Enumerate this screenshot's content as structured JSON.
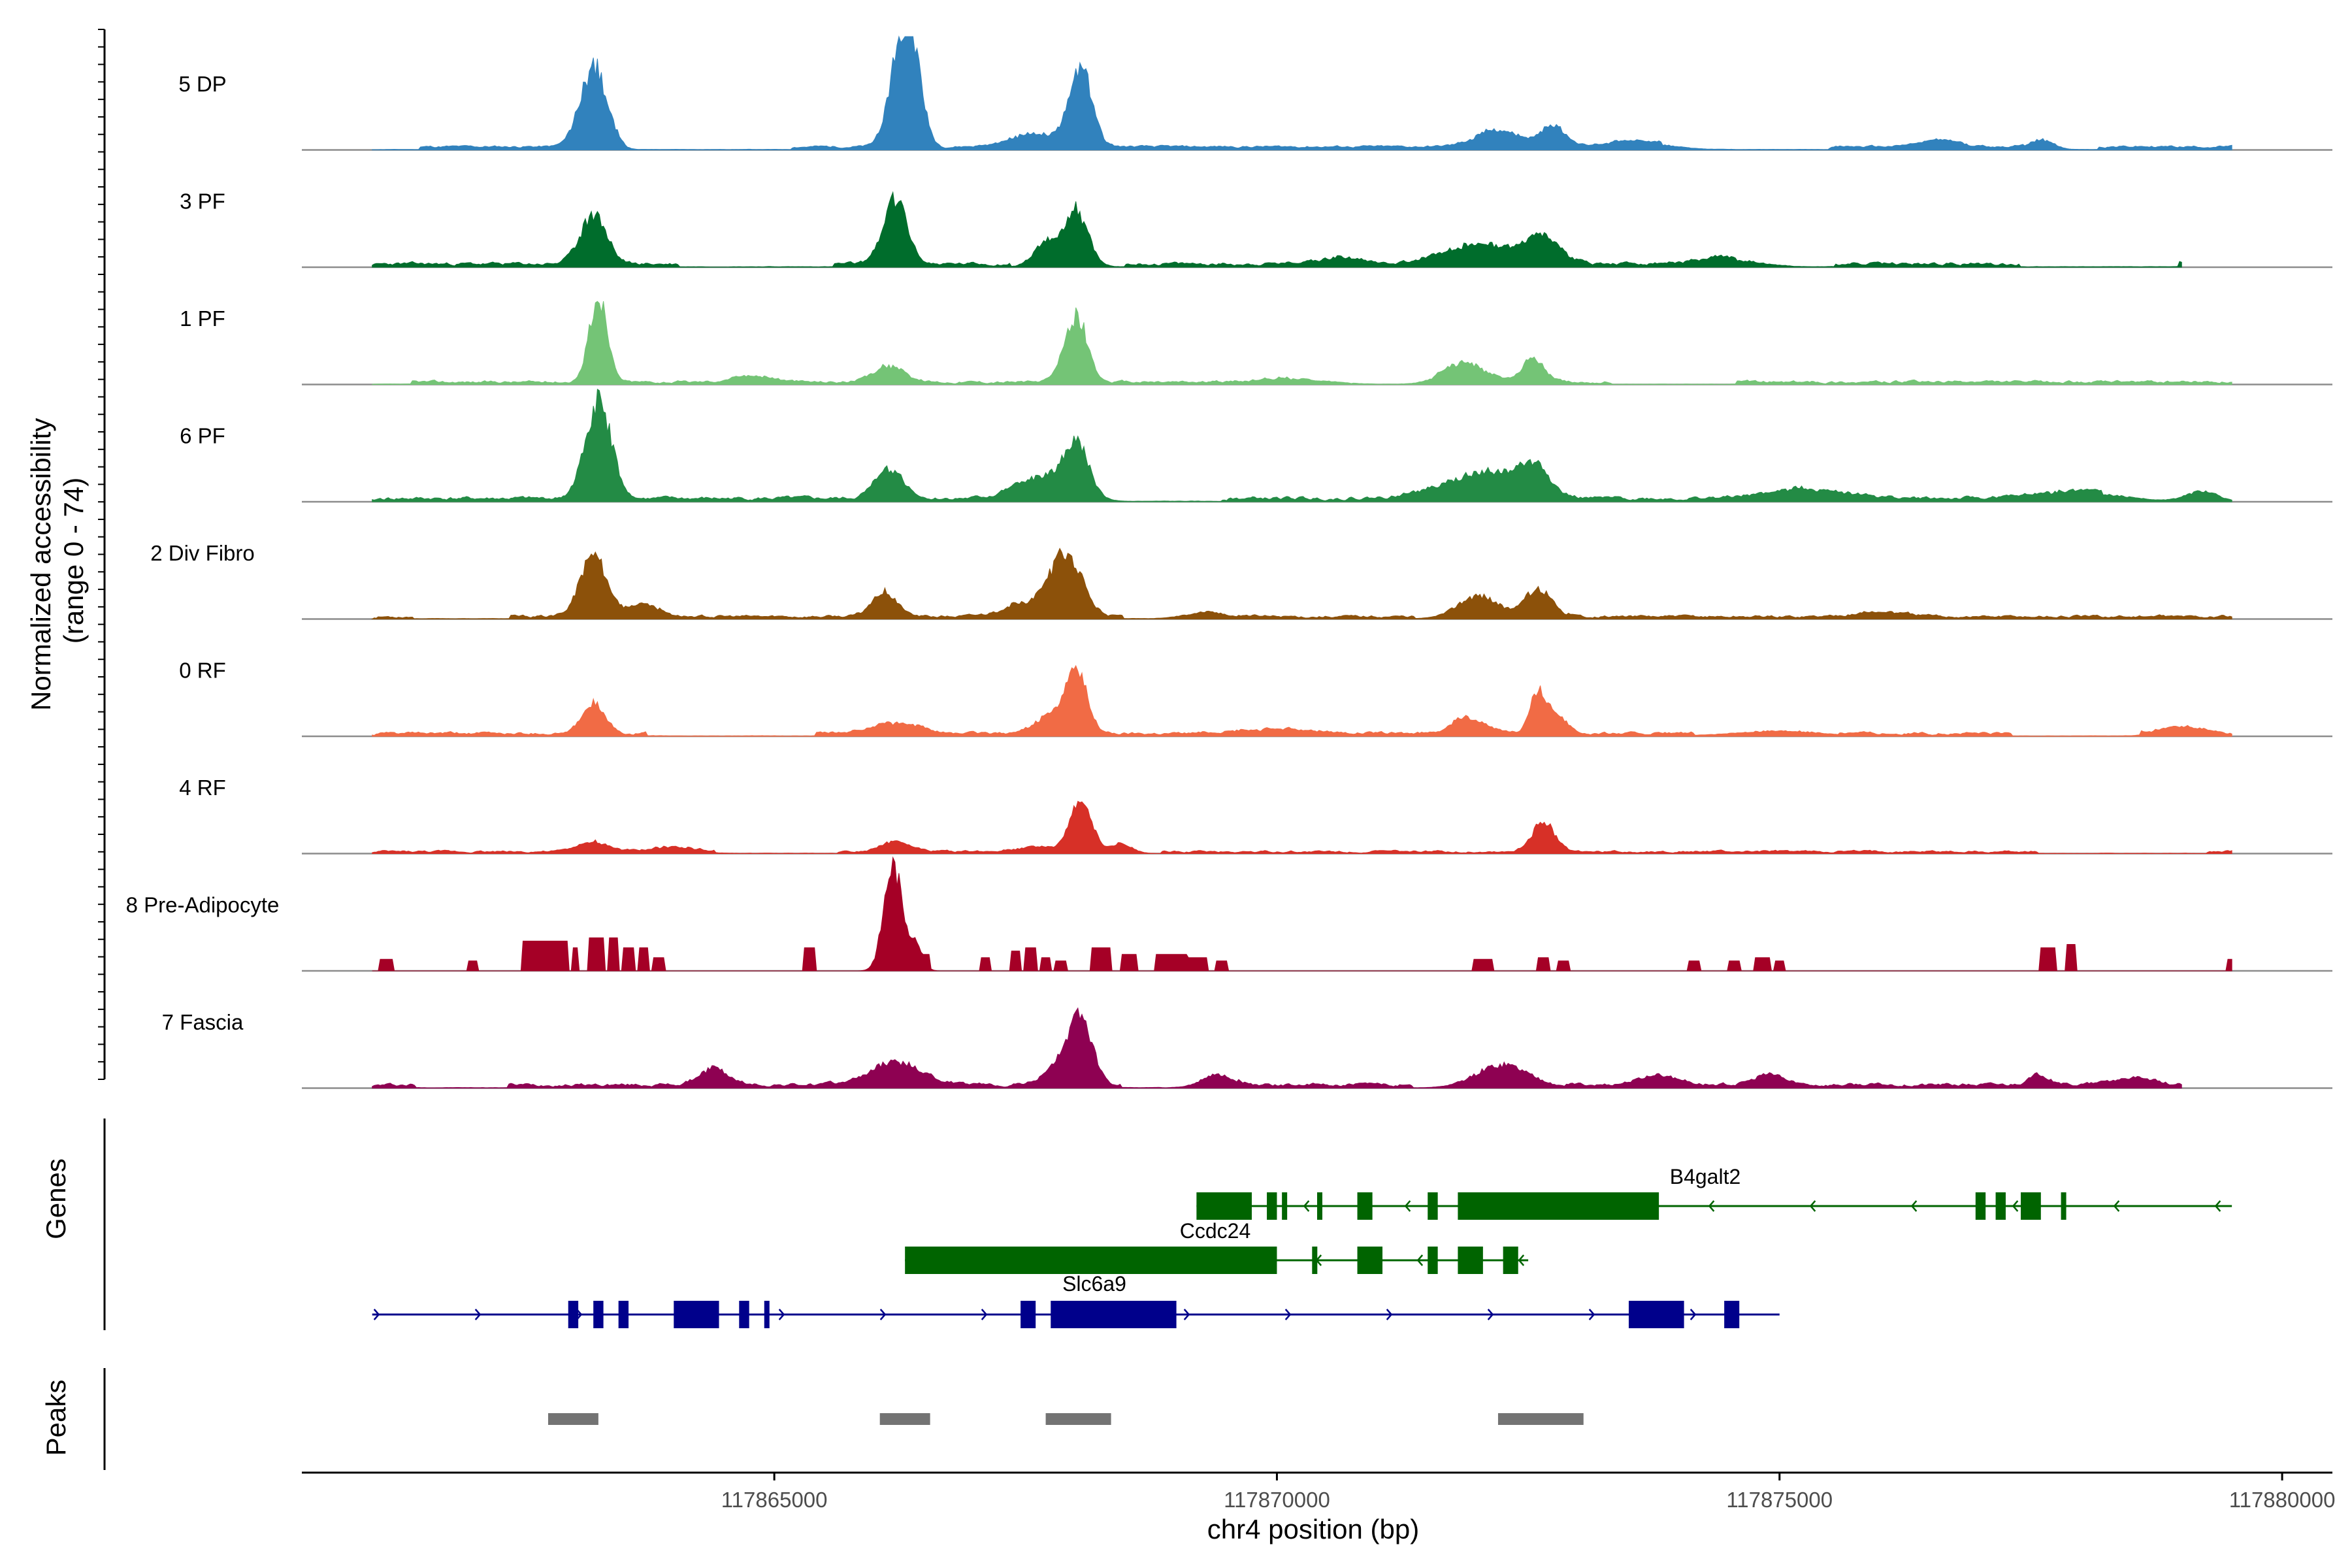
{
  "chart_data": {
    "type": "area",
    "title": "",
    "xlabel": "chr4 position (bp)",
    "ylabel_line1": "Normalized accessibility",
    "ylabel_line2": "(range 0 - 74)",
    "ylim": [
      0,
      74
    ],
    "xlim": [
      117860300,
      117880500
    ],
    "x_ticks": [
      117865000,
      117870000,
      117875000,
      117880000
    ],
    "x_tick_labels": [
      "117865000",
      "117870000",
      "117875000",
      "117880000"
    ],
    "tracks": [
      {
        "name": "5 DP",
        "color": "#3182bd",
        "start": 117861000,
        "end": 117879500,
        "baseline": 2.0,
        "noise": 0.8,
        "seed": 11,
        "peaks": [
          [
            117863200,
            130,
            48
          ],
          [
            117866250,
            110,
            56
          ],
          [
            117866400,
            90,
            40
          ],
          [
            117868050,
            110,
            46
          ],
          [
            117867600,
            250,
            8
          ],
          [
            117872200,
            220,
            10
          ],
          [
            117872750,
            120,
            12
          ],
          [
            117873600,
            300,
            4
          ],
          [
            117876600,
            200,
            4
          ],
          [
            117877600,
            120,
            6
          ]
        ]
      },
      {
        "name": "3 PF",
        "color": "#006d2c",
        "start": 117861000,
        "end": 117879000,
        "baseline": 2.0,
        "noise": 1.2,
        "seed": 23,
        "peaks": [
          [
            117863200,
            130,
            30
          ],
          [
            117866200,
            120,
            38
          ],
          [
            117867700,
            120,
            14
          ],
          [
            117868000,
            120,
            34
          ],
          [
            117872000,
            350,
            12
          ],
          [
            117872650,
            180,
            16
          ],
          [
            117870600,
            250,
            4
          ],
          [
            117874500,
            300,
            4
          ]
        ]
      },
      {
        "name": "1 PF",
        "color": "#74c476",
        "start": 117861000,
        "end": 117879500,
        "baseline": 1.5,
        "noise": 1.0,
        "seed": 37,
        "peaks": [
          [
            117863250,
            90,
            52
          ],
          [
            117868000,
            110,
            40
          ],
          [
            117866150,
            150,
            10
          ],
          [
            117864800,
            200,
            4
          ],
          [
            117871850,
            200,
            12
          ],
          [
            117872550,
            110,
            14
          ],
          [
            117870200,
            300,
            3
          ]
        ]
      },
      {
        "name": "6 PF",
        "color": "#238b45",
        "start": 117861000,
        "end": 117879500,
        "baseline": 2.0,
        "noise": 1.3,
        "seed": 41,
        "peaks": [
          [
            117863250,
            130,
            58
          ],
          [
            117866150,
            140,
            18
          ],
          [
            117868000,
            130,
            34
          ],
          [
            117867600,
            230,
            12
          ],
          [
            117872000,
            380,
            16
          ],
          [
            117872550,
            150,
            18
          ],
          [
            117875300,
            400,
            6
          ],
          [
            117878000,
            400,
            5
          ],
          [
            117879200,
            150,
            6
          ]
        ]
      },
      {
        "name": "2 Div Fibro",
        "color": "#8c510a",
        "start": 117861000,
        "end": 117879500,
        "baseline": 1.5,
        "noise": 1.0,
        "seed": 53,
        "peaks": [
          [
            117863200,
            130,
            38
          ],
          [
            117863700,
            160,
            8
          ],
          [
            117866100,
            120,
            16
          ],
          [
            117867900,
            160,
            36
          ],
          [
            117867500,
            220,
            8
          ],
          [
            117872000,
            200,
            14
          ],
          [
            117872600,
            140,
            18
          ],
          [
            117869300,
            200,
            4
          ],
          [
            117876000,
            250,
            3
          ]
        ]
      },
      {
        "name": "0 RF",
        "color": "#f16b45",
        "start": 117861000,
        "end": 117879500,
        "baseline": 1.8,
        "noise": 1.0,
        "seed": 61,
        "peaks": [
          [
            117863200,
            110,
            18
          ],
          [
            117868000,
            110,
            38
          ],
          [
            117867700,
            130,
            10
          ],
          [
            117866200,
            220,
            7
          ],
          [
            117872600,
            80,
            26
          ],
          [
            117871900,
            160,
            10
          ],
          [
            117872800,
            100,
            10
          ],
          [
            117870000,
            400,
            3
          ],
          [
            117875000,
            400,
            3
          ],
          [
            117879000,
            200,
            4
          ]
        ]
      },
      {
        "name": "4 RF",
        "color": "#d73027",
        "start": 117861000,
        "end": 117879500,
        "baseline": 1.2,
        "noise": 0.8,
        "seed": 73,
        "peaks": [
          [
            117868050,
            110,
            30
          ],
          [
            117872650,
            110,
            18
          ],
          [
            117863200,
            150,
            6
          ],
          [
            117866200,
            150,
            6
          ],
          [
            117868450,
            100,
            6
          ],
          [
            117867600,
            200,
            4
          ],
          [
            117864000,
            200,
            3
          ]
        ]
      },
      {
        "name": "8 Pre-Adipocyte",
        "color": "#a50026",
        "start": 117861000,
        "end": 117879500,
        "baseline": 0.0,
        "noise": 0.0,
        "seed": 83,
        "peaks": [
          [
            117866180,
            90,
            64
          ],
          [
            117866400,
            70,
            16
          ]
        ],
        "blocks": [
          [
            117861070,
            117861200,
            7
          ],
          [
            117861950,
            117862050,
            6
          ],
          [
            117862500,
            117862950,
            18
          ],
          [
            117862600,
            117862700,
            10
          ],
          [
            117863000,
            117863050,
            14
          ],
          [
            117863150,
            117863300,
            20
          ],
          [
            117863350,
            117863450,
            20
          ],
          [
            117863500,
            117863600,
            14
          ],
          [
            117863650,
            117863750,
            14
          ],
          [
            117863800,
            117863900,
            8
          ],
          [
            117865300,
            117865400,
            14
          ],
          [
            117866450,
            117866550,
            10
          ],
          [
            117867050,
            117867150,
            8
          ],
          [
            117867350,
            117867450,
            12
          ],
          [
            117867500,
            117867600,
            14
          ],
          [
            117867650,
            117867750,
            8
          ],
          [
            117867800,
            117867900,
            6
          ],
          [
            117868150,
            117868350,
            14
          ],
          [
            117868450,
            117868600,
            10
          ],
          [
            117868800,
            117869100,
            10
          ],
          [
            117869100,
            117869300,
            8
          ],
          [
            117869400,
            117869500,
            6
          ],
          [
            117871950,
            117872150,
            7
          ],
          [
            117872600,
            117872700,
            8
          ],
          [
            117872800,
            117872900,
            6
          ],
          [
            117874100,
            117874200,
            6
          ],
          [
            117874500,
            117874600,
            6
          ],
          [
            117874750,
            117874900,
            8
          ],
          [
            117874950,
            117875050,
            6
          ],
          [
            117877600,
            117877750,
            14
          ],
          [
            117877850,
            117877950,
            16
          ],
          [
            117879450,
            117879500,
            7
          ]
        ]
      },
      {
        "name": "7 Fascia",
        "color": "#8e0152",
        "start": 117861000,
        "end": 117879000,
        "baseline": 2.0,
        "noise": 1.2,
        "seed": 97,
        "peaks": [
          [
            117868050,
            120,
            36
          ],
          [
            117867850,
            160,
            12
          ],
          [
            117866200,
            250,
            14
          ],
          [
            117864400,
            140,
            10
          ],
          [
            117872250,
            260,
            14
          ],
          [
            117869400,
            150,
            8
          ],
          [
            117874900,
            150,
            6
          ],
          [
            117873800,
            200,
            6
          ],
          [
            117877600,
            120,
            6
          ],
          [
            117878500,
            200,
            4
          ]
        ]
      }
    ],
    "genes_label": "Genes",
    "genes": [
      {
        "name": "B4galt2",
        "color": "#006400",
        "strand": "-",
        "start": 117869200,
        "end": 117879500,
        "exons": [
          [
            117869200,
            117869750
          ],
          [
            117869900,
            117870000
          ],
          [
            117870050,
            117870100
          ],
          [
            117870400,
            117870450
          ],
          [
            117870800,
            117870950
          ],
          [
            117871500,
            117871600
          ],
          [
            117871800,
            117873800
          ],
          [
            117876950,
            117877050
          ],
          [
            117877150,
            117877250
          ],
          [
            117877400,
            117877600
          ],
          [
            117877800,
            117877850
          ]
        ]
      },
      {
        "name": "Ccdc24",
        "color": "#006400",
        "strand": "-",
        "start": 117866300,
        "end": 117872500,
        "exons": [
          [
            117866300,
            117870000
          ],
          [
            117870350,
            117870400
          ],
          [
            117870800,
            117871050
          ],
          [
            117871500,
            117871600
          ],
          [
            117871800,
            117872050
          ],
          [
            117872250,
            117872400
          ]
        ]
      },
      {
        "name": "Slc6a9",
        "color": "#00008b",
        "strand": "+",
        "start": 117861000,
        "end": 117875000,
        "exons": [
          [
            117862950,
            117863050
          ],
          [
            117863200,
            117863300
          ],
          [
            117863450,
            117863550
          ],
          [
            117864000,
            117864450
          ],
          [
            117864650,
            117864750
          ],
          [
            117864900,
            117864950
          ],
          [
            117867450,
            117867600
          ],
          [
            117867750,
            117869000
          ],
          [
            117873500,
            117874050
          ],
          [
            117874450,
            117874600
          ]
        ]
      }
    ],
    "peaks_label": "Peaks",
    "peaks_color": "#737373",
    "peak_regions": [
      [
        117862750,
        117863250
      ],
      [
        117866050,
        117866550
      ],
      [
        117867700,
        117868350
      ],
      [
        117872200,
        117873050
      ]
    ]
  }
}
